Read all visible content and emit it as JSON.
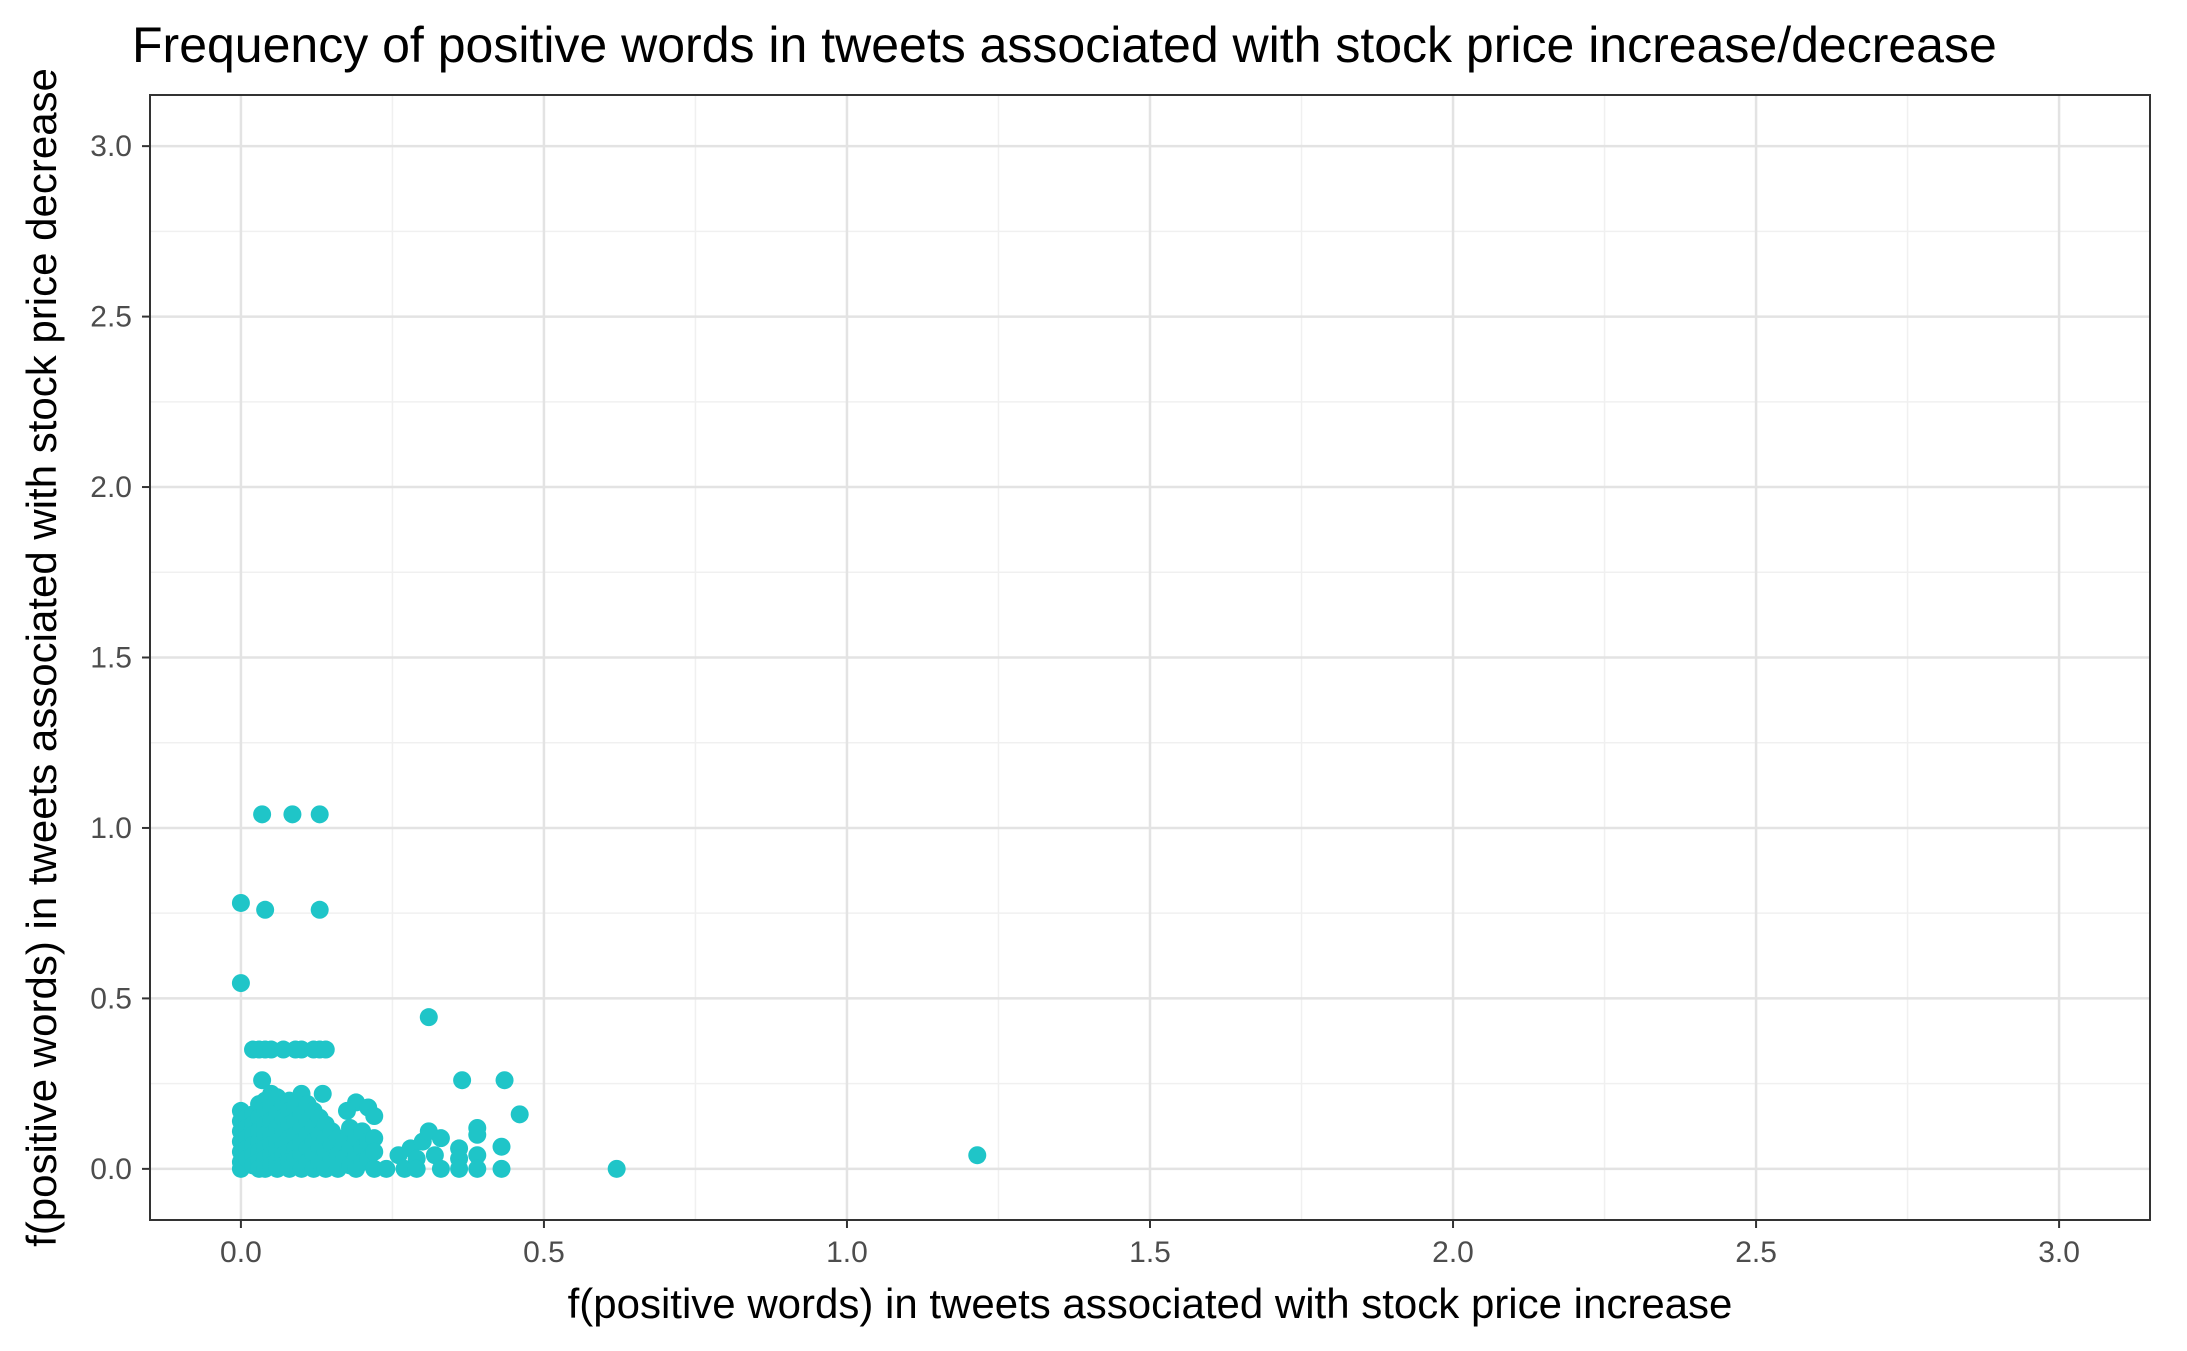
{
  "chart_data": {
    "type": "scatter",
    "title": "Frequency of positive words in tweets associated with stock price increase/decrease",
    "xlabel": "f(positive words) in tweets associated with stock price increase",
    "ylabel": "f(positive words) in tweets associated with stock price decrease",
    "xlim": [
      -0.15,
      3.15
    ],
    "ylim": [
      -0.15,
      3.15
    ],
    "x_ticks": [
      0.0,
      0.5,
      1.0,
      1.5,
      2.0,
      2.5,
      3.0
    ],
    "x_tick_labels": [
      "0.0",
      "0.5",
      "1.0",
      "1.5",
      "2.0",
      "2.5",
      "3.0"
    ],
    "y_ticks": [
      0.0,
      0.5,
      1.0,
      1.5,
      2.0,
      2.5,
      3.0
    ],
    "y_tick_labels": [
      "0.0",
      "0.5",
      "1.0",
      "1.5",
      "2.0",
      "2.5",
      "3.0"
    ],
    "grid": true,
    "point_color": "#1fc5c8",
    "points": [
      {
        "x": 0.035,
        "y": 1.04
      },
      {
        "x": 0.085,
        "y": 1.04
      },
      {
        "x": 0.13,
        "y": 1.04
      },
      {
        "x": 0.0,
        "y": 0.78
      },
      {
        "x": 0.04,
        "y": 0.76
      },
      {
        "x": 0.13,
        "y": 0.76
      },
      {
        "x": 0.0,
        "y": 0.545
      },
      {
        "x": 0.31,
        "y": 0.445
      },
      {
        "x": 0.02,
        "y": 0.35
      },
      {
        "x": 0.03,
        "y": 0.35
      },
      {
        "x": 0.04,
        "y": 0.35
      },
      {
        "x": 0.05,
        "y": 0.35
      },
      {
        "x": 0.07,
        "y": 0.35
      },
      {
        "x": 0.09,
        "y": 0.35
      },
      {
        "x": 0.1,
        "y": 0.35
      },
      {
        "x": 0.12,
        "y": 0.35
      },
      {
        "x": 0.13,
        "y": 0.35
      },
      {
        "x": 0.14,
        "y": 0.35
      },
      {
        "x": 0.035,
        "y": 0.26
      },
      {
        "x": 0.365,
        "y": 0.26
      },
      {
        "x": 0.435,
        "y": 0.26
      },
      {
        "x": 0.05,
        "y": 0.22
      },
      {
        "x": 0.1,
        "y": 0.22
      },
      {
        "x": 0.135,
        "y": 0.22
      },
      {
        "x": 0.19,
        "y": 0.195
      },
      {
        "x": 0.21,
        "y": 0.18
      },
      {
        "x": 0.175,
        "y": 0.17
      },
      {
        "x": 0.46,
        "y": 0.16
      },
      {
        "x": 0.22,
        "y": 0.155
      },
      {
        "x": 0.0,
        "y": 0.17
      },
      {
        "x": 0.0,
        "y": 0.14
      },
      {
        "x": 0.0,
        "y": 0.11
      },
      {
        "x": 0.0,
        "y": 0.08
      },
      {
        "x": 0.0,
        "y": 0.05
      },
      {
        "x": 0.0,
        "y": 0.02
      },
      {
        "x": 0.0,
        "y": 0.0
      },
      {
        "x": 0.01,
        "y": 0.15
      },
      {
        "x": 0.01,
        "y": 0.12
      },
      {
        "x": 0.01,
        "y": 0.09
      },
      {
        "x": 0.01,
        "y": 0.06
      },
      {
        "x": 0.01,
        "y": 0.03
      },
      {
        "x": 0.02,
        "y": 0.16
      },
      {
        "x": 0.02,
        "y": 0.13
      },
      {
        "x": 0.02,
        "y": 0.1
      },
      {
        "x": 0.02,
        "y": 0.07
      },
      {
        "x": 0.02,
        "y": 0.04
      },
      {
        "x": 0.02,
        "y": 0.01
      },
      {
        "x": 0.03,
        "y": 0.19
      },
      {
        "x": 0.03,
        "y": 0.15
      },
      {
        "x": 0.03,
        "y": 0.11
      },
      {
        "x": 0.03,
        "y": 0.08
      },
      {
        "x": 0.03,
        "y": 0.05
      },
      {
        "x": 0.03,
        "y": 0.02
      },
      {
        "x": 0.03,
        "y": 0.0
      },
      {
        "x": 0.04,
        "y": 0.2
      },
      {
        "x": 0.04,
        "y": 0.17
      },
      {
        "x": 0.04,
        "y": 0.13
      },
      {
        "x": 0.04,
        "y": 0.1
      },
      {
        "x": 0.04,
        "y": 0.06
      },
      {
        "x": 0.04,
        "y": 0.03
      },
      {
        "x": 0.04,
        "y": 0.0
      },
      {
        "x": 0.05,
        "y": 0.18
      },
      {
        "x": 0.05,
        "y": 0.14
      },
      {
        "x": 0.05,
        "y": 0.1
      },
      {
        "x": 0.05,
        "y": 0.07
      },
      {
        "x": 0.05,
        "y": 0.04
      },
      {
        "x": 0.05,
        "y": 0.01
      },
      {
        "x": 0.06,
        "y": 0.21
      },
      {
        "x": 0.06,
        "y": 0.16
      },
      {
        "x": 0.06,
        "y": 0.12
      },
      {
        "x": 0.06,
        "y": 0.08
      },
      {
        "x": 0.06,
        "y": 0.05
      },
      {
        "x": 0.06,
        "y": 0.02
      },
      {
        "x": 0.06,
        "y": 0.0
      },
      {
        "x": 0.07,
        "y": 0.19
      },
      {
        "x": 0.07,
        "y": 0.15
      },
      {
        "x": 0.07,
        "y": 0.11
      },
      {
        "x": 0.07,
        "y": 0.07
      },
      {
        "x": 0.07,
        "y": 0.04
      },
      {
        "x": 0.07,
        "y": 0.01
      },
      {
        "x": 0.08,
        "y": 0.2
      },
      {
        "x": 0.08,
        "y": 0.17
      },
      {
        "x": 0.08,
        "y": 0.13
      },
      {
        "x": 0.08,
        "y": 0.09
      },
      {
        "x": 0.08,
        "y": 0.05
      },
      {
        "x": 0.08,
        "y": 0.02
      },
      {
        "x": 0.08,
        "y": 0.0
      },
      {
        "x": 0.09,
        "y": 0.18
      },
      {
        "x": 0.09,
        "y": 0.14
      },
      {
        "x": 0.09,
        "y": 0.1
      },
      {
        "x": 0.09,
        "y": 0.06
      },
      {
        "x": 0.09,
        "y": 0.03
      },
      {
        "x": 0.1,
        "y": 0.16
      },
      {
        "x": 0.1,
        "y": 0.12
      },
      {
        "x": 0.1,
        "y": 0.08
      },
      {
        "x": 0.1,
        "y": 0.04
      },
      {
        "x": 0.1,
        "y": 0.0
      },
      {
        "x": 0.11,
        "y": 0.19
      },
      {
        "x": 0.11,
        "y": 0.14
      },
      {
        "x": 0.11,
        "y": 0.1
      },
      {
        "x": 0.11,
        "y": 0.06
      },
      {
        "x": 0.11,
        "y": 0.02
      },
      {
        "x": 0.12,
        "y": 0.17
      },
      {
        "x": 0.12,
        "y": 0.12
      },
      {
        "x": 0.12,
        "y": 0.08
      },
      {
        "x": 0.12,
        "y": 0.04
      },
      {
        "x": 0.12,
        "y": 0.0
      },
      {
        "x": 0.13,
        "y": 0.15
      },
      {
        "x": 0.13,
        "y": 0.1
      },
      {
        "x": 0.13,
        "y": 0.06
      },
      {
        "x": 0.13,
        "y": 0.02
      },
      {
        "x": 0.14,
        "y": 0.13
      },
      {
        "x": 0.14,
        "y": 0.09
      },
      {
        "x": 0.14,
        "y": 0.05
      },
      {
        "x": 0.14,
        "y": 0.0
      },
      {
        "x": 0.15,
        "y": 0.11
      },
      {
        "x": 0.15,
        "y": 0.07
      },
      {
        "x": 0.15,
        "y": 0.03
      },
      {
        "x": 0.16,
        "y": 0.09
      },
      {
        "x": 0.16,
        "y": 0.04
      },
      {
        "x": 0.16,
        "y": 0.0
      },
      {
        "x": 0.17,
        "y": 0.08
      },
      {
        "x": 0.17,
        "y": 0.03
      },
      {
        "x": 0.18,
        "y": 0.12
      },
      {
        "x": 0.18,
        "y": 0.06
      },
      {
        "x": 0.18,
        "y": 0.01
      },
      {
        "x": 0.19,
        "y": 0.09
      },
      {
        "x": 0.19,
        "y": 0.04
      },
      {
        "x": 0.19,
        "y": 0.0
      },
      {
        "x": 0.2,
        "y": 0.11
      },
      {
        "x": 0.2,
        "y": 0.06
      },
      {
        "x": 0.2,
        "y": 0.02
      },
      {
        "x": 0.21,
        "y": 0.08
      },
      {
        "x": 0.21,
        "y": 0.03
      },
      {
        "x": 0.22,
        "y": 0.09
      },
      {
        "x": 0.22,
        "y": 0.05
      },
      {
        "x": 0.22,
        "y": 0.0
      },
      {
        "x": 0.24,
        "y": 0.0
      },
      {
        "x": 0.26,
        "y": 0.04
      },
      {
        "x": 0.27,
        "y": 0.0
      },
      {
        "x": 0.28,
        "y": 0.06
      },
      {
        "x": 0.29,
        "y": 0.03
      },
      {
        "x": 0.29,
        "y": 0.0
      },
      {
        "x": 0.3,
        "y": 0.08
      },
      {
        "x": 0.31,
        "y": 0.11
      },
      {
        "x": 0.32,
        "y": 0.04
      },
      {
        "x": 0.33,
        "y": 0.09
      },
      {
        "x": 0.33,
        "y": 0.0
      },
      {
        "x": 0.36,
        "y": 0.06
      },
      {
        "x": 0.36,
        "y": 0.03
      },
      {
        "x": 0.36,
        "y": 0.0
      },
      {
        "x": 0.39,
        "y": 0.12
      },
      {
        "x": 0.39,
        "y": 0.1
      },
      {
        "x": 0.39,
        "y": 0.04
      },
      {
        "x": 0.39,
        "y": 0.0
      },
      {
        "x": 0.43,
        "y": 0.065
      },
      {
        "x": 0.43,
        "y": 0.0
      },
      {
        "x": 0.62,
        "y": 0.0
      },
      {
        "x": 1.215,
        "y": 0.04
      }
    ]
  }
}
